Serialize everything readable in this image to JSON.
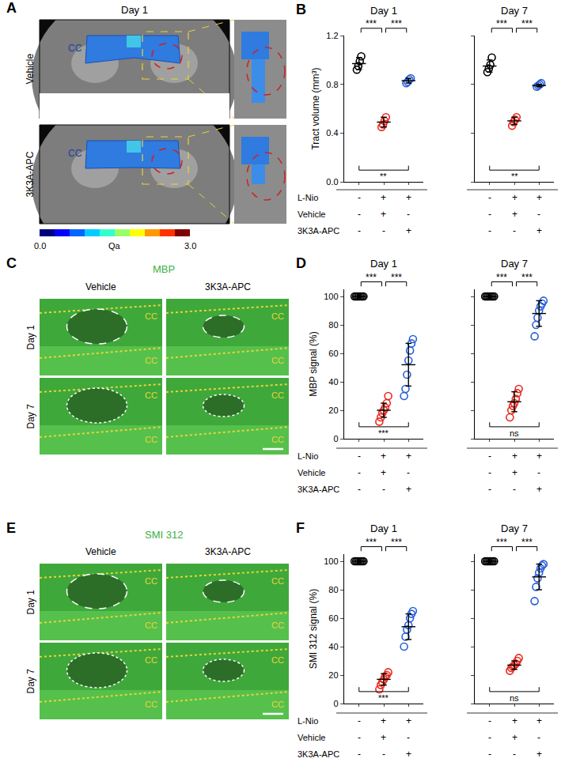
{
  "images": [
    {
      "panel": "A",
      "title": "Day 1",
      "rows": [
        "Vehicle",
        "3K3A-APC"
      ],
      "region": "CC",
      "colorbar": {
        "title": "Qa",
        "min": {
          "value": 0,
          "label": "0.0"
        },
        "max": {
          "value": 3,
          "label": "3.0"
        }
      }
    },
    {
      "panel": "C",
      "stain": "MBP",
      "columns": [
        "Vehicle",
        "3K3A-APC"
      ],
      "rows": [
        "Day 1",
        "Day 7"
      ],
      "region": "CC"
    },
    {
      "panel": "E",
      "stain": "SMI 312",
      "columns": [
        "Vehicle",
        "3K3A-APC"
      ],
      "rows": [
        "Day 1",
        "Day 7"
      ],
      "region": "CC"
    }
  ],
  "chart_data": [
    {
      "panel": "B",
      "type": "scatter",
      "title": "Day 1",
      "y_label": "Tract volume (mm³)",
      "marker": "open circle",
      "ylim": [
        0,
        1.2
      ],
      "yticks": [
        {
          "value": 0,
          "label": "0.0"
        },
        {
          "value": 0.4,
          "label": "0.4"
        },
        {
          "value": 0.8,
          "label": "0.8"
        },
        {
          "value": 1.2,
          "label": "1.2"
        }
      ],
      "tick_labels": "y",
      "groups": [
        {
          "color": "#000000",
          "values": [
            0.92,
            0.95,
            0.99,
            1.03
          ],
          "mean": 0.97,
          "sd": 0.05
        },
        {
          "color": "#e8281e",
          "values": [
            0.45,
            0.47,
            0.5,
            0.53
          ],
          "mean": 0.49,
          "sd": 0.04
        },
        {
          "color": "#2a5fd9",
          "values": [
            0.81,
            0.82,
            0.84,
            0.85
          ],
          "mean": 0.83,
          "sd": 0.02
        }
      ],
      "brackets_top": [
        {
          "from": 0,
          "to": 1,
          "label": "***"
        },
        {
          "from": 1,
          "to": 2,
          "label": "***"
        }
      ],
      "brackets_bottom": [
        {
          "from": 0,
          "to": 2,
          "label": "**"
        }
      ],
      "condition_names": [
        "L-Nio",
        "Vehicle",
        "3K3A-APC"
      ],
      "conditions": [
        [
          "-",
          "+",
          "+"
        ],
        [
          "-",
          "+",
          "-"
        ],
        [
          "-",
          "-",
          "+"
        ]
      ]
    },
    {
      "type": "scatter",
      "title": "Day 7",
      "marker": "open circle",
      "ylim": [
        0,
        1.2
      ],
      "yticks": [
        {
          "value": 0,
          "label": "0.0"
        },
        {
          "value": 0.4,
          "label": "0.4"
        },
        {
          "value": 0.8,
          "label": "0.8"
        },
        {
          "value": 1.2,
          "label": "1.2"
        }
      ],
      "tick_labels": false,
      "groups": [
        {
          "color": "#000000",
          "values": [
            0.9,
            0.93,
            0.96,
            1.02
          ],
          "mean": 0.95,
          "sd": 0.05
        },
        {
          "color": "#e8281e",
          "values": [
            0.46,
            0.49,
            0.51,
            0.53
          ],
          "mean": 0.5,
          "sd": 0.03
        },
        {
          "color": "#2a5fd9",
          "values": [
            0.78,
            0.79,
            0.8,
            0.81
          ],
          "mean": 0.79,
          "sd": 0.01
        }
      ],
      "brackets_top": [
        {
          "from": 0,
          "to": 1,
          "label": "***"
        },
        {
          "from": 1,
          "to": 2,
          "label": "***"
        }
      ],
      "brackets_bottom": [
        {
          "from": 0,
          "to": 2,
          "label": "**"
        }
      ],
      "conditions": [
        [
          "-",
          "+",
          "+"
        ],
        [
          "-",
          "+",
          "-"
        ],
        [
          "-",
          "-",
          "+"
        ]
      ]
    },
    {
      "panel": "D",
      "type": "scatter",
      "title": "Day 1",
      "y_label": "MBP signal (%)",
      "marker": "open circle",
      "ylim": [
        0,
        105
      ],
      "yticks": [
        0,
        20,
        40,
        60,
        80,
        100
      ],
      "tick_labels": "y",
      "groups": [
        {
          "color": "#000000",
          "values": [
            100,
            100,
            100,
            100,
            100,
            100,
            100
          ],
          "mean": 100,
          "sd": 0
        },
        {
          "color": "#e8281e",
          "values": [
            12,
            15,
            18,
            20,
            22,
            25,
            30
          ],
          "mean": 20,
          "sd": 5
        },
        {
          "color": "#2a5fd9",
          "values": [
            30,
            35,
            45,
            55,
            62,
            67,
            70
          ],
          "mean": 52,
          "sd": 15
        }
      ],
      "brackets_top": [
        {
          "from": 0,
          "to": 1,
          "label": "***"
        },
        {
          "from": 1,
          "to": 2,
          "label": "***"
        }
      ],
      "brackets_bottom": [
        {
          "from": 0,
          "to": 2,
          "label": "***"
        }
      ],
      "condition_names": [
        "L-Nio",
        "Vehicle",
        "3K3A-APC"
      ],
      "conditions": [
        [
          "-",
          "+",
          "+"
        ],
        [
          "-",
          "+",
          "-"
        ],
        [
          "-",
          "-",
          "+"
        ]
      ]
    },
    {
      "type": "scatter",
      "title": "Day 7",
      "marker": "open circle",
      "ylim": [
        0,
        105
      ],
      "yticks": [
        0,
        20,
        40,
        60,
        80,
        100
      ],
      "tick_labels": false,
      "groups": [
        {
          "color": "#000000",
          "values": [
            100,
            100,
            100,
            100,
            100,
            100,
            100
          ],
          "mean": 100,
          "sd": 0
        },
        {
          "color": "#e8281e",
          "values": [
            15,
            20,
            23,
            25,
            28,
            32,
            35
          ],
          "mean": 26,
          "sd": 7
        },
        {
          "color": "#2a5fd9",
          "values": [
            72,
            80,
            85,
            90,
            93,
            95,
            97
          ],
          "mean": 88,
          "sd": 9
        }
      ],
      "brackets_top": [
        {
          "from": 0,
          "to": 1,
          "label": "***"
        },
        {
          "from": 1,
          "to": 2,
          "label": "***"
        }
      ],
      "brackets_bottom": [
        {
          "from": 0,
          "to": 2,
          "label": "ns"
        }
      ],
      "conditions": [
        [
          "-",
          "+",
          "+"
        ],
        [
          "-",
          "+",
          "-"
        ],
        [
          "-",
          "-",
          "+"
        ]
      ]
    },
    {
      "panel": "F",
      "type": "scatter",
      "title": "Day 1",
      "y_label": "SMI 312 signal (%)",
      "marker": "open circle",
      "ylim": [
        0,
        105
      ],
      "yticks": [
        0,
        20,
        40,
        60,
        80,
        100
      ],
      "tick_labels": "y",
      "groups": [
        {
          "color": "#000000",
          "values": [
            100,
            100,
            100,
            100,
            100,
            100,
            100
          ],
          "mean": 100,
          "sd": 0
        },
        {
          "color": "#e8281e",
          "values": [
            10,
            13,
            15,
            17,
            19,
            20,
            22
          ],
          "mean": 17,
          "sd": 4
        },
        {
          "color": "#2a5fd9",
          "values": [
            40,
            47,
            52,
            55,
            60,
            63,
            65
          ],
          "mean": 54,
          "sd": 9
        }
      ],
      "brackets_top": [
        {
          "from": 0,
          "to": 1,
          "label": "***"
        },
        {
          "from": 1,
          "to": 2,
          "label": "***"
        }
      ],
      "brackets_bottom": [
        {
          "from": 0,
          "to": 2,
          "label": "***"
        }
      ],
      "condition_names": [
        "L-Nio",
        "Vehicle",
        "3K3A-APC"
      ],
      "conditions": [
        [
          "-",
          "+",
          "+"
        ],
        [
          "-",
          "+",
          "-"
        ],
        [
          "-",
          "-",
          "+"
        ]
      ]
    },
    {
      "type": "scatter",
      "title": "Day 7",
      "marker": "open circle",
      "ylim": [
        0,
        105
      ],
      "yticks": [
        0,
        20,
        40,
        60,
        80,
        100
      ],
      "tick_labels": false,
      "groups": [
        {
          "color": "#000000",
          "values": [
            100,
            100,
            100,
            100,
            100,
            100,
            100
          ],
          "mean": 100,
          "sd": 0
        },
        {
          "color": "#e8281e",
          "values": [
            23,
            25,
            26,
            27,
            28,
            30,
            32
          ],
          "mean": 27,
          "sd": 3
        },
        {
          "color": "#2a5fd9",
          "values": [
            72,
            82,
            88,
            92,
            95,
            97,
            98
          ],
          "mean": 89,
          "sd": 9
        }
      ],
      "brackets_top": [
        {
          "from": 0,
          "to": 1,
          "label": "***"
        },
        {
          "from": 1,
          "to": 2,
          "label": "***"
        }
      ],
      "brackets_bottom": [
        {
          "from": 0,
          "to": 2,
          "label": "ns"
        }
      ],
      "conditions": [
        [
          "-",
          "+",
          "+"
        ],
        [
          "-",
          "+",
          "-"
        ],
        [
          "-",
          "-",
          "+"
        ]
      ]
    }
  ]
}
